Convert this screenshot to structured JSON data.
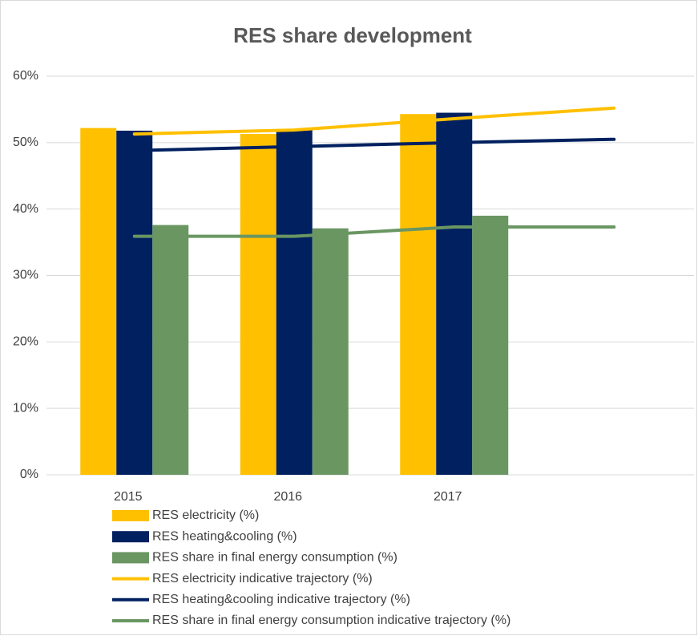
{
  "chart_data": {
    "type": "bar_line",
    "title": "RES share development",
    "categories": [
      "2015",
      "2016",
      "2017",
      null
    ],
    "series": [
      {
        "name": "RES electricity (%)",
        "color": "#ffc000",
        "style": "bar",
        "values": [
          52.2,
          51.3,
          54.3,
          null
        ]
      },
      {
        "name": "RES heating&cooling (%)",
        "color": "#002060",
        "style": "bar",
        "values": [
          51.8,
          51.9,
          54.5,
          null
        ]
      },
      {
        "name": "RES share in final energy consumption (%)",
        "color": "#6a9662",
        "style": "bar",
        "values": [
          37.6,
          37.1,
          39.0,
          null
        ]
      },
      {
        "name": "RES electricity indicative trajectory (%)",
        "color": "#ffc000",
        "style": "line",
        "values": [
          51.3,
          51.9,
          53.6,
          55.2
        ]
      },
      {
        "name": "RES heating&cooling indicative trajectory (%)",
        "color": "#002060",
        "style": "line",
        "values": [
          48.8,
          49.4,
          50.0,
          50.5
        ]
      },
      {
        "name": "RES share in final energy consumption indicative trajectory (%)",
        "color": "#6a9662",
        "style": "line",
        "values": [
          35.9,
          35.9,
          37.3,
          37.3
        ]
      }
    ],
    "ylim": [
      0,
      60
    ],
    "yticks": [
      {
        "value": 0,
        "label": "0%"
      },
      {
        "value": 10,
        "label": "10%"
      },
      {
        "value": 20,
        "label": "20%"
      },
      {
        "value": 30,
        "label": "30%"
      },
      {
        "value": 40,
        "label": "40%"
      },
      {
        "value": 50,
        "label": "50%"
      },
      {
        "value": 60,
        "label": "60%"
      }
    ],
    "grid": true,
    "legend": "bottom"
  }
}
